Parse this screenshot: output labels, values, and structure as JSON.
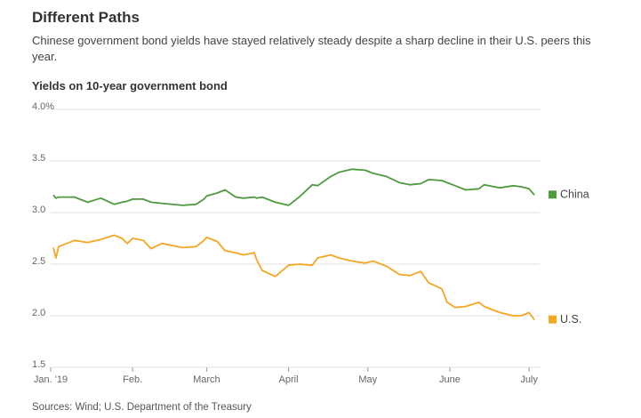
{
  "chart_data": {
    "type": "line",
    "title": "Different Paths",
    "subtitle": "Chinese government bond yields have stayed relatively steady despite a sharp decline in their U.S. peers this year.",
    "y_axis_title": "Yields on 10-year government bond",
    "source": "Sources: Wind; U.S. Department of the Treasury",
    "xlim": [
      0,
      185
    ],
    "xticks": [
      {
        "value": 0,
        "label": "Jan. '19"
      },
      {
        "value": 31,
        "label": "Feb."
      },
      {
        "value": 59,
        "label": "March"
      },
      {
        "value": 90,
        "label": "April"
      },
      {
        "value": 120,
        "label": "May"
      },
      {
        "value": 151,
        "label": "June"
      },
      {
        "value": 181,
        "label": "July"
      }
    ],
    "ylim": [
      1.5,
      4.0
    ],
    "yticks": [
      {
        "value": 1.5,
        "label": "1.5"
      },
      2.5,
      {
        "value": 2.0,
        "label": "2.0"
      },
      {
        "value": 3.0,
        "label": "3.0"
      },
      3.5,
      {
        "value": 4.0,
        "label": "4.0%"
      }
    ],
    "grid": true,
    "x": [
      1,
      2,
      3,
      9,
      14,
      19,
      24,
      27,
      29,
      31,
      35,
      38,
      42,
      50,
      55,
      58,
      59,
      63,
      66,
      70,
      73,
      77,
      78,
      80,
      85,
      90,
      94,
      99,
      101,
      106,
      109,
      114,
      119,
      122,
      127,
      132,
      136,
      140,
      143,
      148,
      150,
      153,
      157,
      162,
      164,
      170,
      175,
      178,
      181,
      183
    ],
    "series": [
      {
        "name": "China",
        "color": "#4e9a3e",
        "values": [
          3.17,
          3.14,
          3.15,
          3.15,
          3.1,
          3.14,
          3.08,
          3.1,
          3.11,
          3.13,
          3.13,
          3.1,
          3.09,
          3.07,
          3.08,
          3.13,
          3.16,
          3.19,
          3.22,
          3.15,
          3.14,
          3.15,
          3.14,
          3.15,
          3.1,
          3.07,
          3.15,
          3.27,
          3.26,
          3.35,
          3.39,
          3.42,
          3.41,
          3.38,
          3.35,
          3.29,
          3.27,
          3.28,
          3.32,
          3.31,
          3.29,
          3.26,
          3.22,
          3.23,
          3.27,
          3.24,
          3.26,
          3.25,
          3.23,
          3.17
        ]
      },
      {
        "name": "U.S.",
        "color": "#f5a623",
        "values": [
          2.66,
          2.56,
          2.67,
          2.73,
          2.71,
          2.74,
          2.78,
          2.75,
          2.7,
          2.75,
          2.73,
          2.65,
          2.7,
          2.66,
          2.67,
          2.73,
          2.76,
          2.72,
          2.63,
          2.61,
          2.59,
          2.61,
          2.54,
          2.44,
          2.38,
          2.49,
          2.5,
          2.49,
          2.56,
          2.59,
          2.56,
          2.53,
          2.51,
          2.53,
          2.48,
          2.4,
          2.39,
          2.43,
          2.32,
          2.26,
          2.13,
          2.08,
          2.09,
          2.13,
          2.09,
          2.03,
          2.0,
          2.0,
          2.03,
          1.96
        ]
      }
    ]
  }
}
